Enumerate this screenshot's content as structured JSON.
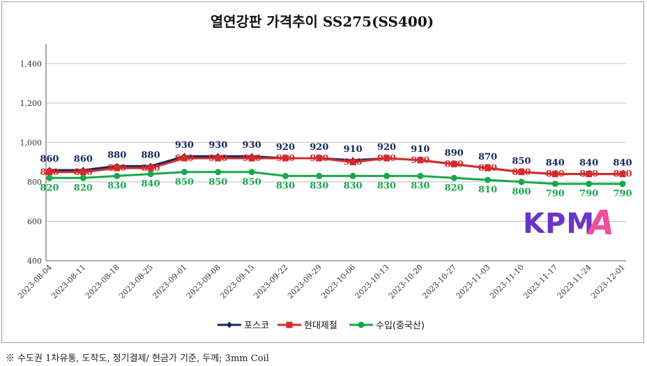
{
  "chart_data": {
    "type": "line",
    "title": "열연강판 가격추이 SS275(SS400)",
    "categories": [
      "2023-08-04",
      "2023-08-11",
      "2023-08-18",
      "2023-08-25",
      "2023-09-01",
      "2023-09-08",
      "2023-09-15",
      "2023-09-22",
      "2023-09-29",
      "2023-10-06",
      "2023-10-13",
      "2023-10-20",
      "2023-10-27",
      "2023-11-03",
      "2023-11-10",
      "2023-11-17",
      "2023-11-24",
      "2023-12-01"
    ],
    "ylim": [
      400,
      1500
    ],
    "yticks": [
      400,
      600,
      800,
      1000,
      1200,
      1400
    ],
    "ytick_labels": [
      "400",
      "600",
      "800",
      "1,000",
      "1,200",
      "1,400"
    ],
    "grid": true,
    "legend_position": "bottom",
    "series": [
      {
        "name": "포스코",
        "color": "#12285e",
        "marker": "diamond",
        "values": [
          860,
          860,
          880,
          880,
          930,
          930,
          930,
          920,
          920,
          910,
          920,
          910,
          890,
          870,
          850,
          840,
          840,
          840
        ]
      },
      {
        "name": "현대제철",
        "color": "#d62b2b",
        "marker": "square",
        "values": [
          850,
          850,
          870,
          870,
          920,
          920,
          920,
          920,
          920,
          900,
          920,
          910,
          890,
          870,
          850,
          840,
          840,
          840
        ]
      },
      {
        "name": "수입(중국산)",
        "color": "#18a84a",
        "marker": "circle",
        "values": [
          820,
          820,
          830,
          840,
          850,
          850,
          850,
          830,
          830,
          830,
          830,
          830,
          820,
          810,
          800,
          790,
          790,
          790
        ]
      }
    ]
  },
  "footnote": "※ 수도권 1차유통, 도착도, 정기결제/ 현금가 기준, 두께; 3mm Coil",
  "logo": {
    "text_main": "KPM",
    "text_accent": "A",
    "color_main": "#6a34c7",
    "color_accent": "#ef4f9e"
  }
}
